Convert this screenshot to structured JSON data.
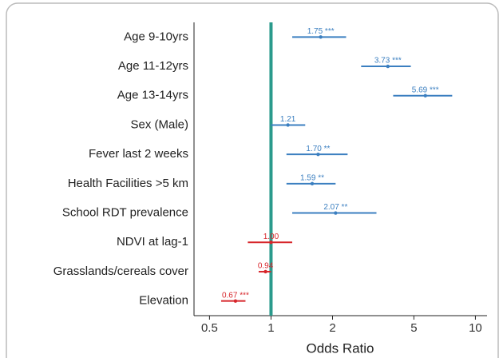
{
  "chart_data": {
    "type": "forest",
    "x_label": "Odds Ratio",
    "categories": [
      "Age 9-10yrs",
      "Age 11-12yrs",
      "Age 13-14yrs",
      "Sex (Male)",
      "Fever last 2 weeks",
      "Health Facilities >5 km",
      "School RDT prevalence",
      "NDVI at lag-1",
      "Grasslands/cereals cover",
      "Elevation"
    ],
    "values": [
      1.75,
      3.73,
      5.69,
      1.21,
      1.7,
      1.59,
      2.07,
      1.0,
      0.94,
      0.67
    ],
    "value_labels": [
      "1.75 ***",
      "3.73 ***",
      "5.69 ***",
      "1.21",
      "1.70 **",
      "1.59 **",
      "2.07 **",
      "1.00",
      "0.94",
      "0.67 ***"
    ],
    "lower": [
      1.27,
      2.76,
      3.96,
      1.0,
      1.19,
      1.19,
      1.27,
      0.77,
      0.87,
      0.57
    ],
    "upper": [
      2.33,
      4.83,
      7.7,
      1.47,
      2.37,
      2.07,
      3.28,
      1.27,
      1.0,
      0.75
    ],
    "colors": [
      "#3b7fc0",
      "#3b7fc0",
      "#3b7fc0",
      "#3b7fc0",
      "#3b7fc0",
      "#3b7fc0",
      "#3b7fc0",
      "#d7262b",
      "#d7262b",
      "#d7262b"
    ],
    "reference_line": 1,
    "reference_color": "#2a9a8c",
    "xlim": [
      0.42,
      11.4
    ],
    "xticks": [
      0.5,
      1,
      2,
      5,
      10
    ],
    "log_x": true
  }
}
